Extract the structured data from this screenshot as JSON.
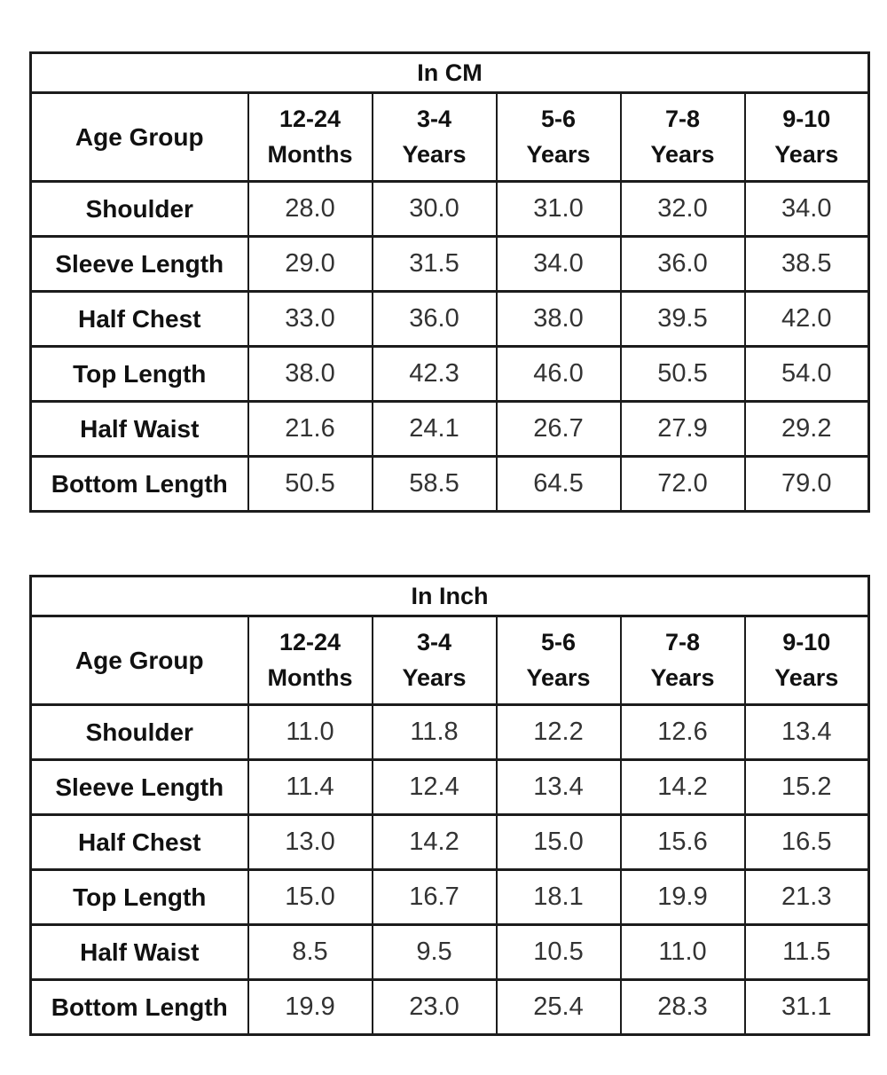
{
  "page": {
    "background": "#ffffff",
    "border_color": "#1c1c1c",
    "label_color": "#111111",
    "value_color": "#333333"
  },
  "chart_data": [
    {
      "type": "table",
      "title": "In CM",
      "corner_header": "Age Group",
      "column_headers": [
        "12-24 Months",
        "3-4 Years",
        "5-6 Years",
        "7-8 Years",
        "9-10 Years"
      ],
      "row_headers": [
        "Shoulder",
        "Sleeve Length",
        "Half Chest",
        "Top Length",
        "Half Waist",
        "Bottom Length"
      ],
      "rows": [
        [
          "28.0",
          "30.0",
          "31.0",
          "32.0",
          "34.0"
        ],
        [
          "29.0",
          "31.5",
          "34.0",
          "36.0",
          "38.5"
        ],
        [
          "33.0",
          "36.0",
          "38.0",
          "39.5",
          "42.0"
        ],
        [
          "38.0",
          "42.3",
          "46.0",
          "50.5",
          "54.0"
        ],
        [
          "21.6",
          "24.1",
          "26.7",
          "27.9",
          "29.2"
        ],
        [
          "50.5",
          "58.5",
          "64.5",
          "72.0",
          "79.0"
        ]
      ]
    },
    {
      "type": "table",
      "title": "In Inch",
      "corner_header": "Age Group",
      "column_headers": [
        "12-24 Months",
        "3-4 Years",
        "5-6 Years",
        "7-8 Years",
        "9-10 Years"
      ],
      "row_headers": [
        "Shoulder",
        "Sleeve Length",
        "Half Chest",
        "Top Length",
        "Half Waist",
        "Bottom Length"
      ],
      "rows": [
        [
          "11.0",
          "11.8",
          "12.2",
          "12.6",
          "13.4"
        ],
        [
          "11.4",
          "12.4",
          "13.4",
          "14.2",
          "15.2"
        ],
        [
          "13.0",
          "14.2",
          "15.0",
          "15.6",
          "16.5"
        ],
        [
          "15.0",
          "16.7",
          "18.1",
          "19.9",
          "21.3"
        ],
        [
          "8.5",
          "9.5",
          "10.5",
          "11.0",
          "11.5"
        ],
        [
          "19.9",
          "23.0",
          "25.4",
          "28.3",
          "31.1"
        ]
      ]
    }
  ]
}
